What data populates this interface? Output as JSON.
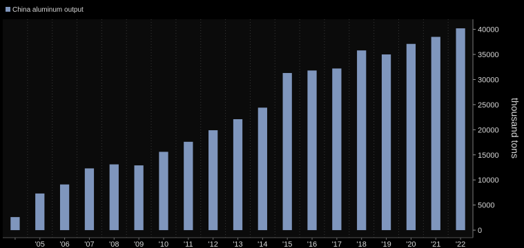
{
  "colors": {
    "background": "#000000",
    "plot_background": "#0b0b0b",
    "bar": "#7f96bd",
    "grid": "#3a3a3a",
    "text": "#d6d6d6"
  },
  "chart_data": {
    "type": "bar",
    "categories": [
      "",
      "'05",
      "'06",
      "'07",
      "'08",
      "'09",
      "'10",
      "'11",
      "'12",
      "'13",
      "'14",
      "'15",
      "'16",
      "'17",
      "'18",
      "'19",
      "'20",
      "'21",
      "'22"
    ],
    "series": [
      {
        "name": "China aluminum output",
        "values": [
          2600,
          7300,
          9100,
          12300,
          13100,
          12900,
          15600,
          17600,
          19900,
          22100,
          24400,
          31300,
          31800,
          32200,
          35800,
          35000,
          37100,
          38500,
          40200
        ]
      }
    ],
    "title": "",
    "xlabel": "",
    "ylabel": "thousand tons",
    "ylim": [
      -1500,
      42000
    ],
    "yticks": [
      0,
      5000,
      10000,
      15000,
      20000,
      25000,
      30000,
      35000,
      40000
    ],
    "y_axis_position": "right",
    "grid": "vertical dotted",
    "legend_position": "top-left"
  }
}
